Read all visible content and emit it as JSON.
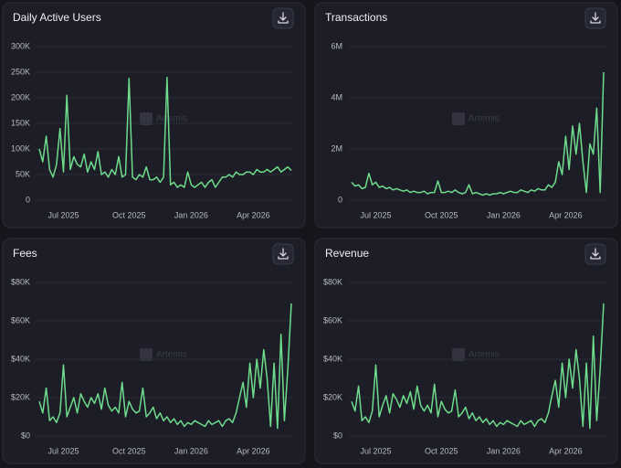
{
  "chart_data": [
    {
      "type": "line",
      "title": "Daily Active Users",
      "watermark": "Artemis",
      "color": "#6fdc8c",
      "categories": [
        null,
        null,
        null,
        null,
        null,
        null,
        null,
        "Jul 2025",
        null,
        null,
        null,
        null,
        null,
        null,
        null,
        null,
        null,
        null,
        null,
        null,
        null,
        null,
        null,
        null,
        null,
        null,
        "Oct 2025",
        null,
        null,
        null,
        null,
        null,
        null,
        null,
        null,
        null,
        null,
        null,
        null,
        null,
        null,
        null,
        null,
        null,
        "Jan 2026",
        null,
        null,
        null,
        null,
        null,
        null,
        null,
        null,
        null,
        null,
        null,
        null,
        null,
        null,
        null,
        null,
        null,
        "Apr 2026",
        null,
        null,
        null,
        null,
        null,
        null,
        null,
        null,
        null,
        null,
        null
      ],
      "values": [
        100000,
        75000,
        125000,
        60000,
        45000,
        70000,
        140000,
        55000,
        205000,
        60000,
        85000,
        70000,
        65000,
        90000,
        55000,
        75000,
        60000,
        95000,
        50000,
        55000,
        45000,
        60000,
        50000,
        85000,
        45000,
        50000,
        238000,
        45000,
        40000,
        50000,
        45000,
        65000,
        40000,
        40000,
        45000,
        35000,
        45000,
        240000,
        30000,
        35000,
        25000,
        30000,
        25000,
        55000,
        30000,
        25000,
        30000,
        35000,
        25000,
        35000,
        40000,
        25000,
        35000,
        45000,
        45000,
        50000,
        45000,
        55000,
        50000,
        50000,
        55000,
        55000,
        50000,
        60000,
        55000,
        55000,
        60000,
        55000,
        60000,
        65000,
        55000,
        60000,
        65000,
        58000
      ],
      "ylim": [
        0,
        300000
      ],
      "yticks": [
        0,
        {
          "value": 50000,
          "label": "50K"
        },
        {
          "value": 100000,
          "label": "100K"
        },
        {
          "value": 150000,
          "label": "150K"
        },
        {
          "value": 200000,
          "label": "200K"
        },
        {
          "value": 250000,
          "label": "250K"
        },
        {
          "value": 300000,
          "label": "300K"
        }
      ],
      "grid": true
    },
    {
      "type": "line",
      "title": "Transactions",
      "watermark": "Artemis",
      "color": "#6fdc8c",
      "categories": [
        null,
        null,
        null,
        null,
        null,
        null,
        null,
        "Jul 2025",
        null,
        null,
        null,
        null,
        null,
        null,
        null,
        null,
        null,
        null,
        null,
        null,
        null,
        null,
        null,
        null,
        null,
        null,
        "Oct 2025",
        null,
        null,
        null,
        null,
        null,
        null,
        null,
        null,
        null,
        null,
        null,
        null,
        null,
        null,
        null,
        null,
        null,
        "Jan 2026",
        null,
        null,
        null,
        null,
        null,
        null,
        null,
        null,
        null,
        null,
        null,
        null,
        null,
        null,
        null,
        null,
        null,
        "Apr 2026",
        null,
        null,
        null,
        null,
        null,
        null,
        null,
        null,
        null,
        null,
        null
      ],
      "values": [
        700000,
        550000,
        600000,
        450000,
        500000,
        1050000,
        600000,
        700000,
        500000,
        550000,
        450000,
        500000,
        400000,
        450000,
        400000,
        350000,
        400000,
        300000,
        350000,
        300000,
        300000,
        350000,
        250000,
        300000,
        300000,
        750000,
        300000,
        300000,
        350000,
        300000,
        400000,
        300000,
        250000,
        300000,
        600000,
        250000,
        300000,
        250000,
        200000,
        250000,
        200000,
        250000,
        250000,
        300000,
        250000,
        300000,
        350000,
        300000,
        300000,
        400000,
        350000,
        300000,
        400000,
        350000,
        450000,
        400000,
        400000,
        600000,
        500000,
        700000,
        1500000,
        1000000,
        2500000,
        1200000,
        2900000,
        1800000,
        3000000,
        1500000,
        300000,
        2200000,
        1800000,
        3600000,
        300000,
        5000000
      ],
      "ylim": [
        0,
        6000000
      ],
      "yticks": [
        0,
        {
          "value": 2000000,
          "label": "2M"
        },
        {
          "value": 4000000,
          "label": "4M"
        },
        {
          "value": 6000000,
          "label": "6M"
        }
      ],
      "grid": true
    },
    {
      "type": "line",
      "title": "Fees",
      "watermark": "Artemis",
      "color": "#6fdc8c",
      "categories": [
        null,
        null,
        null,
        null,
        null,
        null,
        null,
        "Jul 2025",
        null,
        null,
        null,
        null,
        null,
        null,
        null,
        null,
        null,
        null,
        null,
        null,
        null,
        null,
        null,
        null,
        null,
        null,
        "Oct 2025",
        null,
        null,
        null,
        null,
        null,
        null,
        null,
        null,
        null,
        null,
        null,
        null,
        null,
        null,
        null,
        null,
        null,
        "Jan 2026",
        null,
        null,
        null,
        null,
        null,
        null,
        null,
        null,
        null,
        null,
        null,
        null,
        null,
        null,
        null,
        null,
        null,
        "Apr 2026",
        null,
        null,
        null,
        null,
        null,
        null,
        null,
        null,
        null,
        null,
        null
      ],
      "values": [
        18000,
        12000,
        25000,
        8000,
        10000,
        7000,
        12000,
        37000,
        10000,
        15000,
        20000,
        12000,
        22000,
        18000,
        15000,
        20000,
        17000,
        22000,
        14000,
        25000,
        16000,
        13000,
        15000,
        12000,
        28000,
        10000,
        18000,
        14000,
        12000,
        13000,
        25000,
        10000,
        12000,
        15000,
        9000,
        12000,
        8000,
        10000,
        7000,
        9000,
        6000,
        8000,
        5000,
        7000,
        6000,
        8000,
        7000,
        6000,
        5000,
        8000,
        6000,
        7000,
        8000,
        5000,
        8000,
        9000,
        7000,
        12000,
        20000,
        28000,
        15000,
        38000,
        20000,
        40000,
        25000,
        45000,
        30000,
        5000,
        38000,
        4000,
        53000,
        8000,
        35000,
        69000
      ],
      "ylim": [
        0,
        80000
      ],
      "yticks": [
        {
          "value": 0,
          "label": "$0"
        },
        {
          "value": 20000,
          "label": "$20K"
        },
        {
          "value": 40000,
          "label": "$40K"
        },
        {
          "value": 60000,
          "label": "$60K"
        },
        {
          "value": 80000,
          "label": "$80K"
        }
      ],
      "grid": true
    },
    {
      "type": "line",
      "title": "Revenue",
      "watermark": "Artemis",
      "color": "#6fdc8c",
      "categories": [
        null,
        null,
        null,
        null,
        null,
        null,
        null,
        "Jul 2025",
        null,
        null,
        null,
        null,
        null,
        null,
        null,
        null,
        null,
        null,
        null,
        null,
        null,
        null,
        null,
        null,
        null,
        null,
        "Oct 2025",
        null,
        null,
        null,
        null,
        null,
        null,
        null,
        null,
        null,
        null,
        null,
        null,
        null,
        null,
        null,
        null,
        null,
        "Jan 2026",
        null,
        null,
        null,
        null,
        null,
        null,
        null,
        null,
        null,
        null,
        null,
        null,
        null,
        null,
        null,
        null,
        null,
        "Apr 2026",
        null,
        null,
        null,
        null,
        null,
        null,
        null,
        null,
        null,
        null,
        null
      ],
      "values": [
        18000,
        13000,
        26000,
        8000,
        10000,
        7000,
        13000,
        37000,
        10000,
        16000,
        21000,
        12000,
        22000,
        19000,
        15000,
        21000,
        17000,
        23000,
        14000,
        26000,
        16000,
        13000,
        16000,
        12000,
        27000,
        10000,
        18000,
        14000,
        12000,
        13000,
        24000,
        10000,
        12000,
        15000,
        9000,
        12000,
        8000,
        10000,
        7000,
        9000,
        6000,
        8000,
        5000,
        7000,
        6000,
        8000,
        7000,
        6000,
        5000,
        8000,
        6000,
        7000,
        8000,
        5000,
        8000,
        9000,
        7000,
        12000,
        21000,
        29000,
        15000,
        38000,
        20000,
        40000,
        25000,
        45000,
        30000,
        5000,
        38000,
        4000,
        52000,
        8000,
        35000,
        69000
      ],
      "ylim": [
        0,
        80000
      ],
      "yticks": [
        {
          "value": 0,
          "label": "$0"
        },
        {
          "value": 20000,
          "label": "$20K"
        },
        {
          "value": 40000,
          "label": "$40K"
        },
        {
          "value": 60000,
          "label": "$60K"
        },
        {
          "value": 80000,
          "label": "$80K"
        }
      ],
      "grid": true
    }
  ]
}
